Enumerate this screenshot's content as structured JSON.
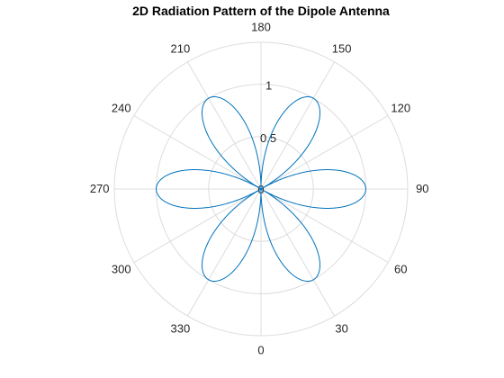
{
  "figure": {
    "background": "#ffffff"
  },
  "chart_data": {
    "type": "line",
    "coordinate_system": "polar",
    "title": "2D Radiation Pattern of the Dipole Antenna",
    "theta_zero_location": "bottom",
    "theta_direction": "counterclockwise",
    "theta_ticks": [
      "0",
      "30",
      "60",
      "90",
      "120",
      "150",
      "180",
      "210",
      "240",
      "270",
      "300",
      "330"
    ],
    "theta_tick_values_deg": [
      0,
      30,
      60,
      90,
      120,
      150,
      180,
      210,
      240,
      270,
      300,
      330
    ],
    "r_ticks": [
      "0",
      "0.5",
      "1"
    ],
    "r_tick_values": [
      0,
      0.5,
      1
    ],
    "r_lim": [
      0,
      1.4
    ],
    "grid": true,
    "grid_color": "#dcdcdc",
    "series": [
      {
        "color": "#0072bd",
        "expression": "|sin(3θ)|",
        "theta_deg": [
          0,
          15,
          30,
          45,
          60,
          75,
          90,
          105,
          120,
          135,
          150,
          165,
          180,
          195,
          210,
          225,
          240,
          255,
          270,
          285,
          300,
          315,
          330,
          345,
          360
        ],
        "r": [
          0,
          0.707,
          1,
          0.707,
          0,
          0.707,
          1,
          0.707,
          0,
          0.707,
          1,
          0.707,
          0,
          0.707,
          1,
          0.707,
          0,
          0.707,
          1,
          0.707,
          0,
          0.707,
          1,
          0.707,
          0
        ]
      }
    ]
  }
}
